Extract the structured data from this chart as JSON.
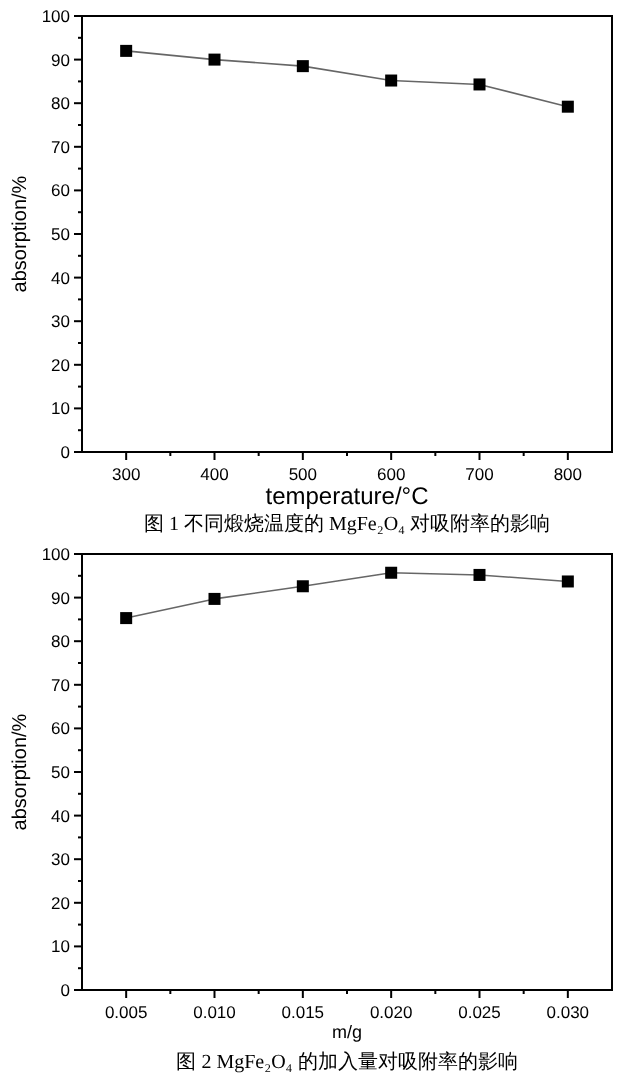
{
  "chart_data": [
    {
      "type": "line",
      "xlabel": "temperature/°C",
      "ylabel": "absorption/%",
      "x": [
        300,
        400,
        500,
        600,
        700,
        800
      ],
      "series": [
        {
          "color": "#000000",
          "values": [
            92,
            90,
            88.5,
            85.2,
            84.3,
            79.2
          ]
        }
      ],
      "xlim": [
        250,
        850
      ],
      "xticks": [
        300,
        400,
        500,
        600,
        700,
        800
      ],
      "ylim": [
        0,
        100
      ],
      "yticks": [
        0,
        10,
        20,
        30,
        40,
        50,
        60,
        70,
        80,
        90,
        100
      ],
      "marker": "square",
      "line_style": "solid",
      "grid": false,
      "annotations": [
        "图 1 不同煅烧温度的 MgFe₂O₄ 对吸附率的影响"
      ]
    },
    {
      "type": "line",
      "xlabel": "m/g",
      "ylabel": "absorption/%",
      "x": [
        0.005,
        0.01,
        0.015,
        0.02,
        0.025,
        0.03
      ],
      "series": [
        {
          "color": "#000000",
          "values": [
            85.3,
            89.7,
            92.6,
            95.7,
            95.2,
            93.7
          ]
        }
      ],
      "xlim": [
        0.0025,
        0.0325
      ],
      "xticks": [
        {
          "value": 0.005,
          "label": "0.005"
        },
        {
          "value": 0.01,
          "label": "0.010"
        },
        {
          "value": 0.015,
          "label": "0.015"
        },
        {
          "value": 0.02,
          "label": "0.020"
        },
        {
          "value": 0.025,
          "label": "0.025"
        },
        {
          "value": 0.03,
          "label": "0.030"
        }
      ],
      "ylim": [
        0,
        100
      ],
      "yticks": [
        0,
        10,
        20,
        30,
        40,
        50,
        60,
        70,
        80,
        90,
        100
      ],
      "marker": "square",
      "line_style": "solid",
      "grid": false,
      "annotations": [
        "图 2 MgFe₂O₄ 的加入量对吸附率的影响"
      ]
    }
  ]
}
